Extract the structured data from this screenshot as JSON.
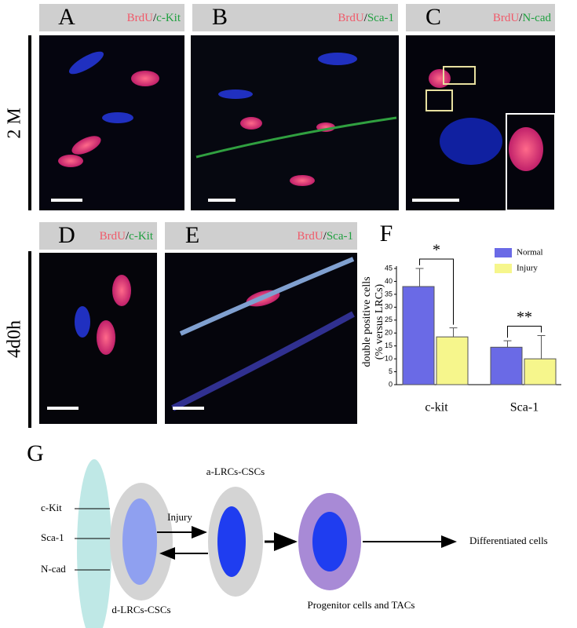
{
  "panels": [
    {
      "letter": "A",
      "stain1": "BrdU",
      "sep": "/",
      "stain2": "c-Kit"
    },
    {
      "letter": "B",
      "stain1": "BrdU",
      "sep": "/",
      "stain2": "Sca-1"
    },
    {
      "letter": "C",
      "stain1": "BrdU",
      "sep": "/",
      "stain2": "N-cad"
    },
    {
      "letter": "D",
      "stain1": "BrdU",
      "sep": "/",
      "stain2": "c-Kit"
    },
    {
      "letter": "E",
      "stain1": "BrdU",
      "sep": "/",
      "stain2": "Sca-1"
    }
  ],
  "row_labels": [
    "2 M",
    "4d0h"
  ],
  "chart_data": {
    "type": "bar",
    "letter": "F",
    "ylabel": [
      "double positive cells",
      "(% versus LRCs)"
    ],
    "categories": [
      "c-kit",
      "Sca-1"
    ],
    "series": [
      {
        "name": "Normal",
        "color": "#6a6ae6",
        "values": [
          38,
          14.5
        ],
        "errors": [
          7,
          2.5
        ]
      },
      {
        "name": "Injury",
        "color": "#f6f68c",
        "values": [
          18.5,
          10
        ],
        "errors": [
          3.5,
          9
        ]
      }
    ],
    "significance": [
      "*",
      "**"
    ],
    "ylim": [
      0,
      45
    ],
    "yticks": [
      0,
      5,
      10,
      15,
      20,
      25,
      30,
      35,
      40,
      45
    ]
  },
  "diagram": {
    "letter": "G",
    "markers": [
      "c-Kit",
      "Sca-1",
      "N-cad"
    ],
    "edge_label": "Injury",
    "nodes": [
      "d-LRCs-CSCs",
      "a-LRCs-CSCs",
      "Progenitor cells and TACs",
      "Differentiated cells"
    ]
  }
}
